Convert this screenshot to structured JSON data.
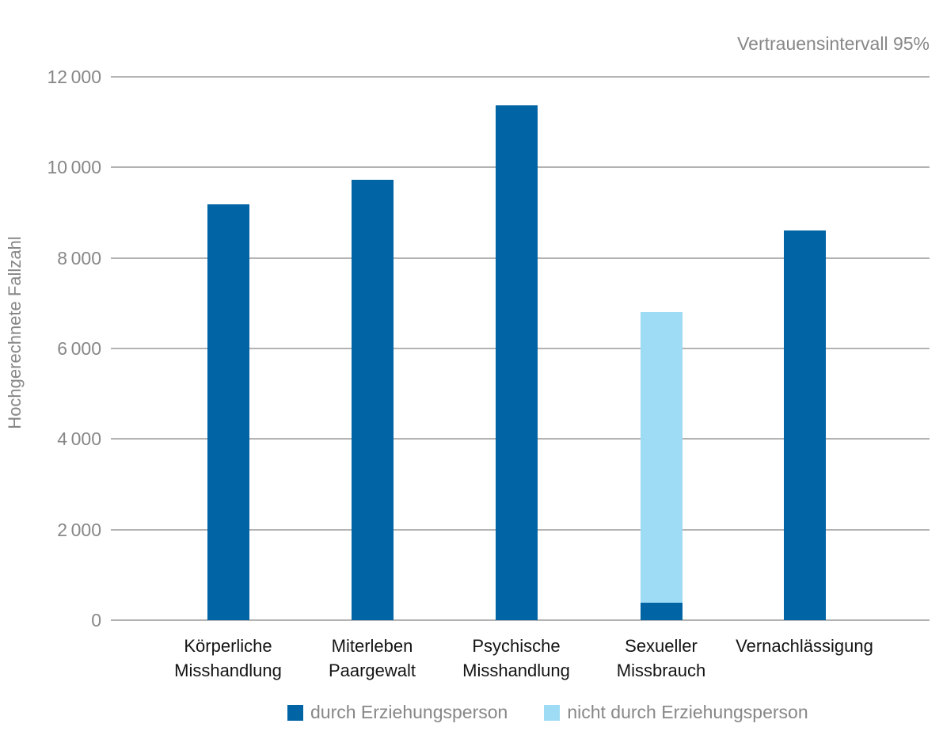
{
  "annotation": "Vertrauensintervall 95%",
  "colors": {
    "dark_blue": "#0064a5",
    "light_blue": "#9edbf4",
    "gridline": "#b3b3b3",
    "axis_text": "#878787",
    "category_text": "#141414",
    "background": "#ffffff"
  },
  "chart_data": {
    "type": "bar",
    "stacked": true,
    "annotation": "Vertrauensintervall 95%",
    "ylabel": "Hochgerechnete Fallzahl",
    "xlabel": "",
    "ylim": [
      0,
      12000
    ],
    "ytick_step": 2000,
    "ytick_labels": [
      "0",
      "2 000",
      "4 000",
      "6 000",
      "8 000",
      "10 000",
      "12 000"
    ],
    "grid": true,
    "categories": [
      "Körperliche Misshandlung",
      "Miterleben Paargewalt",
      "Psychische Misshandlung",
      "Sexueller Missbrauch",
      "Vernachlässigung"
    ],
    "categories_lines": [
      [
        "Körperliche",
        "Misshandlung"
      ],
      [
        "Miterleben",
        "Paargewalt"
      ],
      [
        "Psychische",
        "Misshandlung"
      ],
      [
        "Sexueller",
        "Missbrauch"
      ],
      [
        "Vernachlässigung"
      ]
    ],
    "series": [
      {
        "name": "durch Erziehungsperson",
        "color": "#0064a5",
        "values": [
          9180,
          9730,
          11370,
          380,
          8610
        ]
      },
      {
        "name": "nicht durch Erziehungsperson",
        "color": "#9edbf4",
        "values": [
          0,
          0,
          0,
          6420,
          0
        ]
      }
    ],
    "legend_position": "bottom"
  }
}
